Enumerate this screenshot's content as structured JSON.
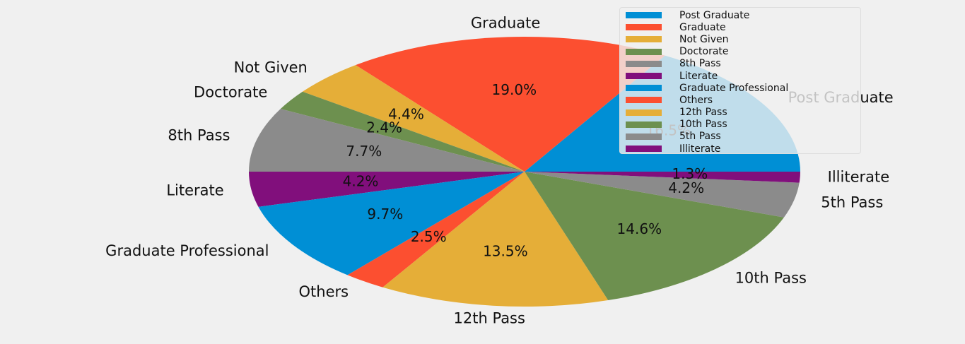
{
  "chart_data": {
    "type": "pie",
    "startangle": 0,
    "direction": "counterclockwise",
    "legend_position": "top-right",
    "slices": [
      {
        "label": "Post Graduate",
        "value": 16.5,
        "pct_label": "16.5%",
        "color": "#008fd5"
      },
      {
        "label": "Graduate",
        "value": 19.0,
        "pct_label": "19.0%",
        "color": "#fc4f30"
      },
      {
        "label": "Not Given",
        "value": 4.4,
        "pct_label": "4.4%",
        "color": "#e5ae38"
      },
      {
        "label": "Doctorate",
        "value": 2.4,
        "pct_label": "2.4%",
        "color": "#6d904f"
      },
      {
        "label": "8th Pass",
        "value": 7.7,
        "pct_label": "7.7%",
        "color": "#8b8b8b"
      },
      {
        "label": "Literate",
        "value": 4.2,
        "pct_label": "4.2%",
        "color": "#810f7c"
      },
      {
        "label": "Graduate Professional",
        "value": 9.7,
        "pct_label": "9.7%",
        "color": "#008fd5"
      },
      {
        "label": "Others",
        "value": 2.5,
        "pct_label": "2.5%",
        "color": "#fc4f30"
      },
      {
        "label": "12th Pass",
        "value": 13.5,
        "pct_label": "13.5%",
        "color": "#e5ae38"
      },
      {
        "label": "10th Pass",
        "value": 14.6,
        "pct_label": "14.6%",
        "color": "#6d904f"
      },
      {
        "label": "5th Pass",
        "value": 4.2,
        "pct_label": "4.2%",
        "color": "#8b8b8b"
      },
      {
        "label": "Illiterate",
        "value": 1.3,
        "pct_label": "1.3%",
        "color": "#810f7c"
      }
    ]
  }
}
